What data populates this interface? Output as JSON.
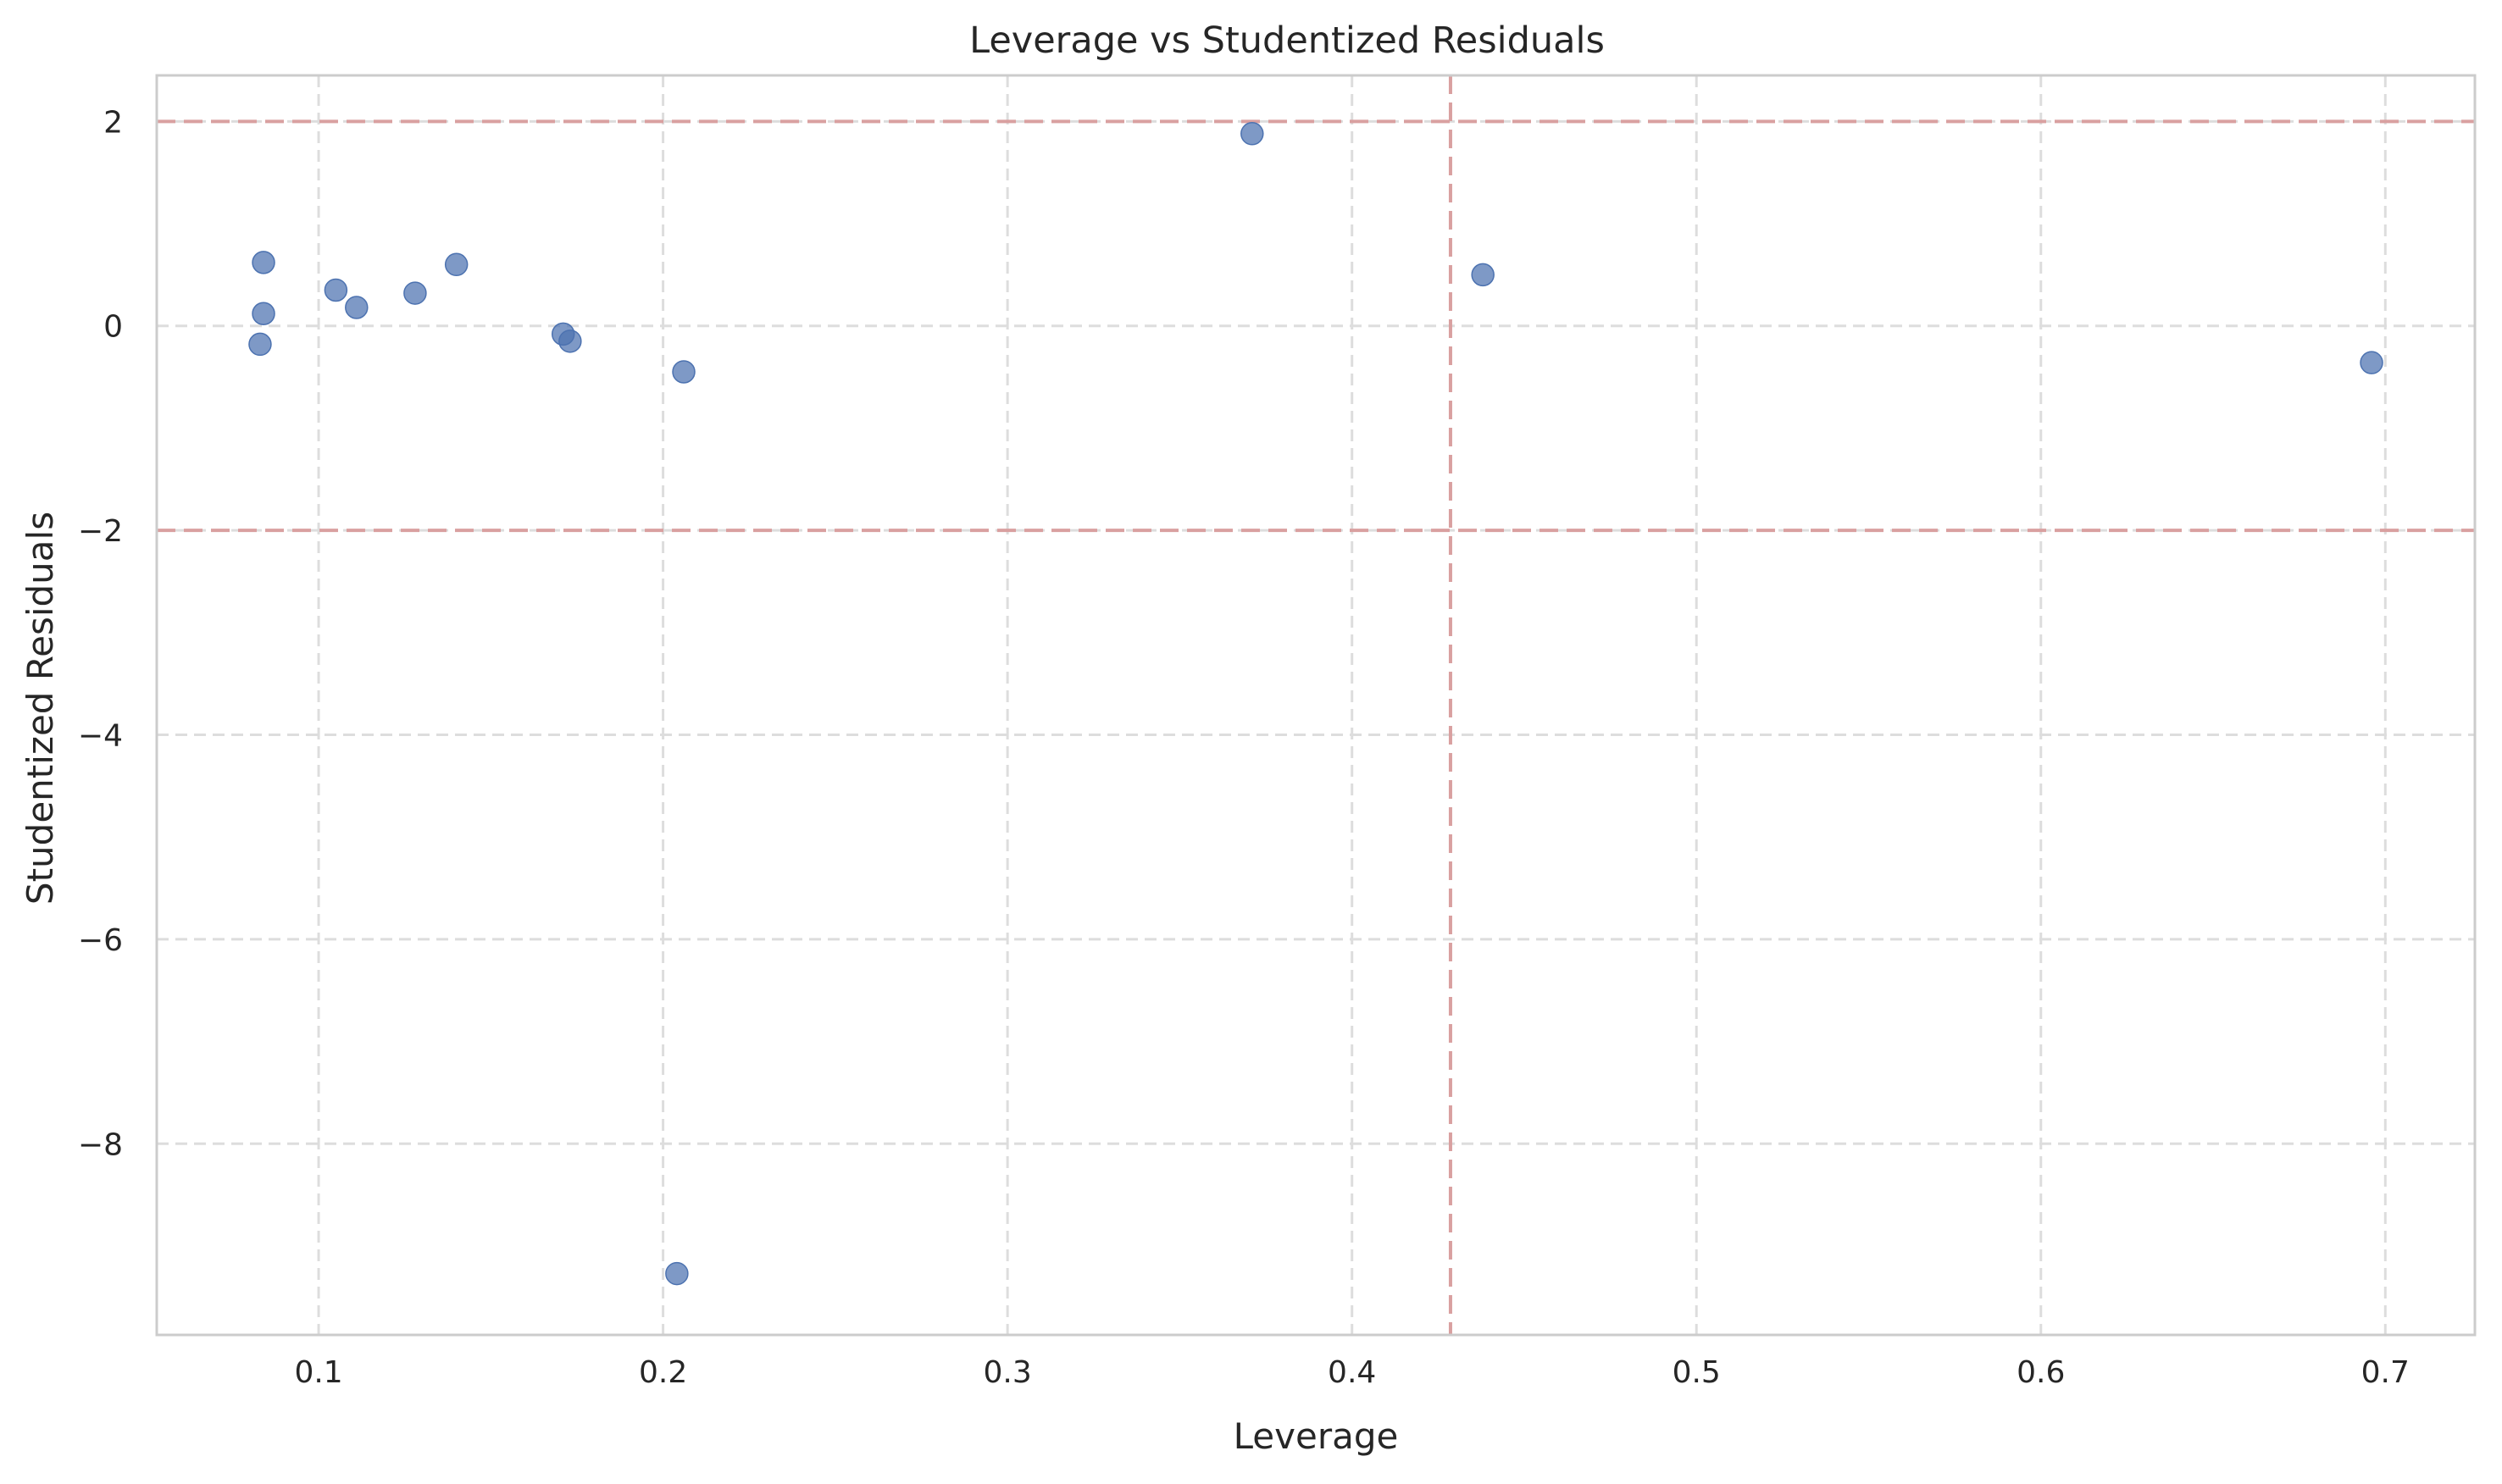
{
  "chart_data": {
    "type": "scatter",
    "title": "Leverage vs Studentized Residuals",
    "xlabel": "Leverage",
    "ylabel": "Studentized Residuals",
    "xlim": [
      0.053,
      0.726
    ],
    "ylim": [
      -9.87,
      2.45
    ],
    "xticks": [
      0.1,
      0.2,
      0.3,
      0.4,
      0.5,
      0.6,
      0.7
    ],
    "xtick_labels": [
      "0.1",
      "0.2",
      "0.3",
      "0.4",
      "0.5",
      "0.6",
      "0.7"
    ],
    "yticks": [
      2,
      0,
      -2,
      -4,
      -6,
      -8
    ],
    "ytick_labels": [
      "2",
      "0",
      "−2",
      "−4",
      "−6",
      "−8"
    ],
    "grid": true,
    "points": [
      {
        "x": 0.084,
        "y": 0.62
      },
      {
        "x": 0.084,
        "y": 0.12
      },
      {
        "x": 0.083,
        "y": -0.18
      },
      {
        "x": 0.105,
        "y": 0.35
      },
      {
        "x": 0.111,
        "y": 0.18
      },
      {
        "x": 0.128,
        "y": 0.32
      },
      {
        "x": 0.14,
        "y": 0.6
      },
      {
        "x": 0.171,
        "y": -0.08
      },
      {
        "x": 0.173,
        "y": -0.15
      },
      {
        "x": 0.206,
        "y": -0.45
      },
      {
        "x": 0.204,
        "y": -9.27
      },
      {
        "x": 0.371,
        "y": 1.88
      },
      {
        "x": 0.438,
        "y": 0.5
      },
      {
        "x": 0.696,
        "y": -0.36
      }
    ],
    "reference_lines": {
      "horizontal": [
        2,
        -2
      ],
      "vertical": [
        0.4286
      ]
    },
    "colors": {
      "points": "#4c72b0",
      "reference": "#d9a0a0",
      "grid": "#dddddd",
      "frame": "#cccccc"
    }
  }
}
